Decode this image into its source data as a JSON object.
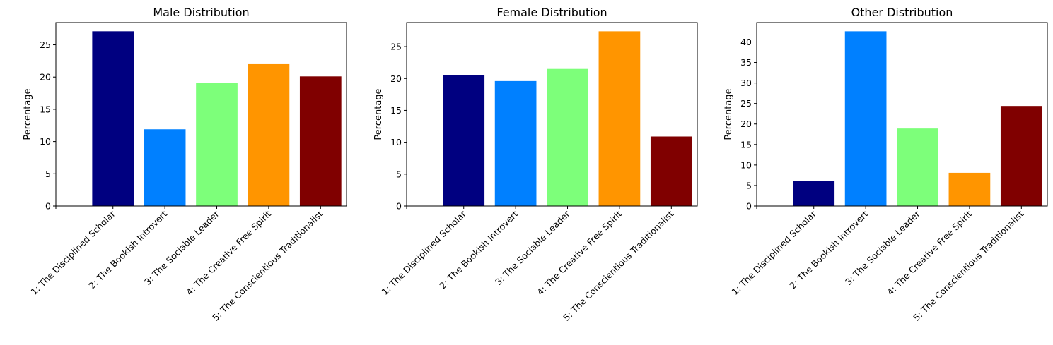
{
  "chart_data": [
    {
      "type": "bar",
      "title": "Male Distribution",
      "xlabel": "",
      "ylabel": "Percentage",
      "categories": [
        "1: The Disciplined Scholar",
        "2: The Bookish Introvert",
        "3: The Sociable Leader",
        "4: The Creative Free Spirit",
        "5: The Conscientious Traditionalist"
      ],
      "values": [
        27.1,
        11.9,
        19.1,
        22.0,
        20.1
      ],
      "colors": [
        "#000080",
        "#0080ff",
        "#7dff7a",
        "#ff9500",
        "#800000"
      ],
      "ylim": [
        0,
        28.45
      ],
      "yticks": [
        0,
        5,
        10,
        15,
        20,
        25
      ],
      "grid": false
    },
    {
      "type": "bar",
      "title": "Female Distribution",
      "xlabel": "",
      "ylabel": "Percentage",
      "categories": [
        "1: The Disciplined Scholar",
        "2: The Bookish Introvert",
        "3: The Sociable Leader",
        "4: The Creative Free Spirit",
        "5: The Conscientious Traditionalist"
      ],
      "values": [
        20.5,
        19.6,
        21.5,
        27.4,
        10.9
      ],
      "colors": [
        "#000080",
        "#0080ff",
        "#7dff7a",
        "#ff9500",
        "#800000"
      ],
      "ylim": [
        0,
        28.77
      ],
      "yticks": [
        0,
        5,
        10,
        15,
        20,
        25
      ],
      "grid": false
    },
    {
      "type": "bar",
      "title": "Other Distribution",
      "xlabel": "",
      "ylabel": "Percentage",
      "categories": [
        "1: The Disciplined Scholar",
        "2: The Bookish Introvert",
        "3: The Sociable Leader",
        "4: The Creative Free Spirit",
        "5: The Conscientious Traditionalist"
      ],
      "values": [
        6.1,
        42.6,
        18.9,
        8.1,
        24.4
      ],
      "colors": [
        "#000080",
        "#0080ff",
        "#7dff7a",
        "#ff9500",
        "#800000"
      ],
      "ylim": [
        0,
        44.73
      ],
      "yticks": [
        0,
        5,
        10,
        15,
        20,
        25,
        30,
        35,
        40
      ],
      "grid": false
    }
  ]
}
